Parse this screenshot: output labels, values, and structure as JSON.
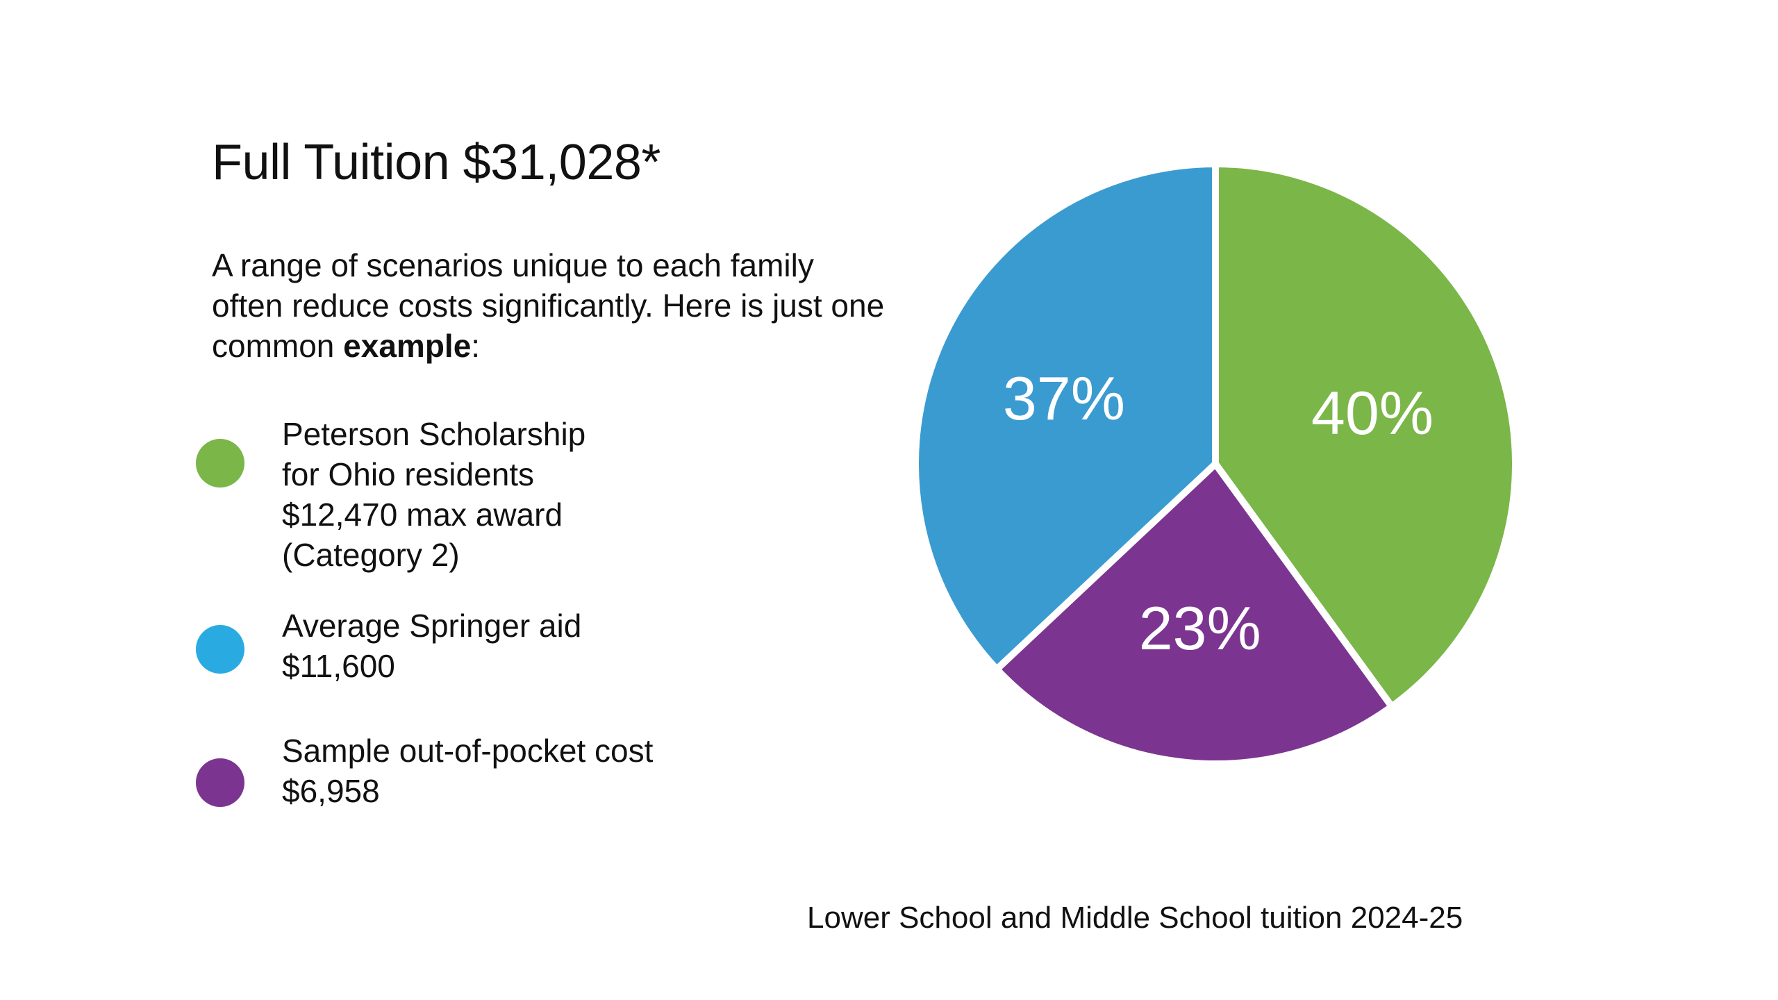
{
  "title": "Full Tuition $31,028*",
  "intro": {
    "text": "A range of scenarios unique to each family often reduce costs significantly. Here is just one common ",
    "bold": "example",
    "suffix": ":"
  },
  "legend": [
    {
      "lines": [
        "Peterson Scholarship",
        "for Ohio residents",
        "$12,470 max award",
        "(Category 2)"
      ],
      "color": "#7ab648"
    },
    {
      "lines": [
        "Average Springer aid",
        "$11,600"
      ],
      "color": "#29abe2"
    },
    {
      "lines": [
        "Sample out-of-pocket cost",
        "$6,958"
      ],
      "color": "#7b3590"
    }
  ],
  "footnote": "Lower School and Middle School tuition 2024-25",
  "chart_data": {
    "type": "pie",
    "slices": [
      {
        "label": "40%",
        "value": 40,
        "color": "#7ab648"
      },
      {
        "label": "23%",
        "value": 23,
        "color": "#7b3590"
      },
      {
        "label": "37%",
        "value": 37,
        "color": "#3a9bd1"
      }
    ]
  }
}
